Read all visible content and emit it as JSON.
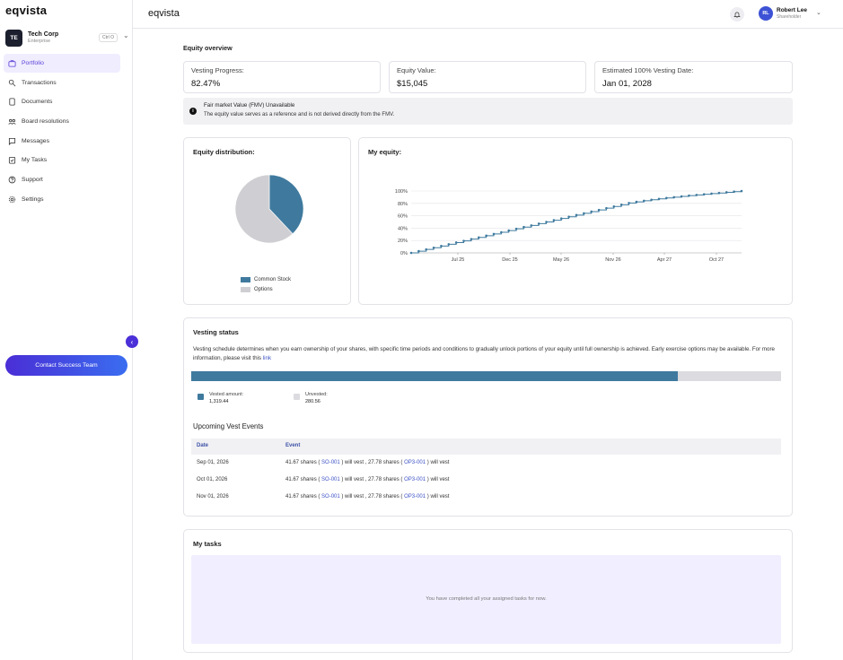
{
  "app": {
    "logo": "eqvista",
    "header_title": "eqvista"
  },
  "company": {
    "initials": "TE",
    "name": "Tech Corp",
    "plan": "Enterprise",
    "shortcut": "Ctrl O"
  },
  "sidebar": {
    "items": [
      {
        "label": "Portfolio",
        "icon": "briefcase-icon",
        "active": true
      },
      {
        "label": "Transactions",
        "icon": "transactions-icon",
        "active": false
      },
      {
        "label": "Documents",
        "icon": "document-icon",
        "active": false
      },
      {
        "label": "Board resolutions",
        "icon": "board-icon",
        "active": false
      },
      {
        "label": "Messages",
        "icon": "message-icon",
        "active": false
      },
      {
        "label": "My Tasks",
        "icon": "tasks-icon",
        "active": false
      },
      {
        "label": "Support",
        "icon": "support-icon",
        "active": false
      },
      {
        "label": "Settings",
        "icon": "gear-icon",
        "active": false
      }
    ],
    "contact_button": "Contact Success Team"
  },
  "user": {
    "initials": "RL",
    "name": "Robert Lee",
    "role": "Shareholder"
  },
  "overview": {
    "title": "Equity overview",
    "cards": [
      {
        "label": "Vesting Progress:",
        "value": "82.47%"
      },
      {
        "label": "Equity Value:",
        "value": "$15,045"
      },
      {
        "label": "Estimated 100% Vesting Date:",
        "value": "Jan 01, 2028"
      }
    ],
    "fmv_title": "Fair market Value (FMV) Unavailable",
    "fmv_text": "The equity value serves as a reference and is not derived directly from the FMV."
  },
  "distribution": {
    "title": "Equity distribution:",
    "legend": [
      "Common Stock",
      "Options"
    ]
  },
  "my_equity": {
    "title": "My equity:"
  },
  "chart_data": [
    {
      "type": "pie",
      "title": "Equity distribution:",
      "categories": [
        "Common Stock",
        "Options"
      ],
      "values": [
        38,
        62
      ],
      "colors": [
        "#3f7a9e",
        "#cfcfd3"
      ],
      "legend_position": "bottom"
    },
    {
      "type": "line",
      "title": "My equity:",
      "xlabel": "",
      "ylabel": "",
      "x_ticks": [
        "Jul 25",
        "Dec 25",
        "May 26",
        "Nov 26",
        "Apr 27",
        "Oct 27"
      ],
      "y_ticks": [
        "0%",
        "20%",
        "40%",
        "60%",
        "80%",
        "100%"
      ],
      "ylim": [
        0,
        100
      ],
      "grid": true,
      "color": "#3f7a9e",
      "series": [
        {
          "values": [
            0,
            2.8,
            5.6,
            8.3,
            11.1,
            13.9,
            16.7,
            19.4,
            22.2,
            25.0,
            27.8,
            30.6,
            33.3,
            36.1,
            38.9,
            41.7,
            44.4,
            47.2,
            50.0,
            52.8,
            55.6,
            58.3,
            61.1,
            63.9,
            66.7,
            69.4,
            72.2,
            75.0,
            77.8,
            80.6,
            82.5,
            84.2,
            85.8,
            87.3,
            88.7,
            90.0,
            91.3,
            92.5,
            93.6,
            94.7,
            95.8,
            96.8,
            97.9,
            99.0,
            100
          ]
        }
      ]
    }
  ],
  "vesting": {
    "title": "Vesting status",
    "description": "Vesting schedule determines when you earn ownership of your shares, with specific time periods and conditions to gradually unlock portions of your equity until full ownership is achieved. Early exercise options may be available. For more information, please visit this",
    "link_text": "link",
    "progress": 0.8247,
    "vested_label": "Vested amount:",
    "vested_value": "1,319.44",
    "unvested_label": "Unvested:",
    "unvested_value": "280.56",
    "colors": {
      "vested": "#3f7a9e",
      "unvested": "#dcdce0"
    }
  },
  "upcoming": {
    "title": "Upcoming Vest Events",
    "columns": [
      "Date",
      "Event"
    ],
    "rows": [
      {
        "date": "Sep 01, 2026",
        "shares1": "41.67 shares (",
        "code1": "SO-001",
        "mid": ") will vest , 27.78 shares (",
        "code2": "OP3-001",
        "end": ") will vest"
      },
      {
        "date": "Oct 01, 2026",
        "shares1": "41.67 shares (",
        "code1": "SO-001",
        "mid": ") will vest , 27.78 shares (",
        "code2": "OP3-001",
        "end": ") will vest"
      },
      {
        "date": "Nov 01, 2026",
        "shares1": "41.67 shares (",
        "code1": "SO-001",
        "mid": ") will vest , 27.78 shares (",
        "code2": "OP3-001",
        "end": ") will vest"
      }
    ]
  },
  "tasks": {
    "title": "My tasks",
    "empty_text": "You have completed all your assigned tasks for now."
  }
}
